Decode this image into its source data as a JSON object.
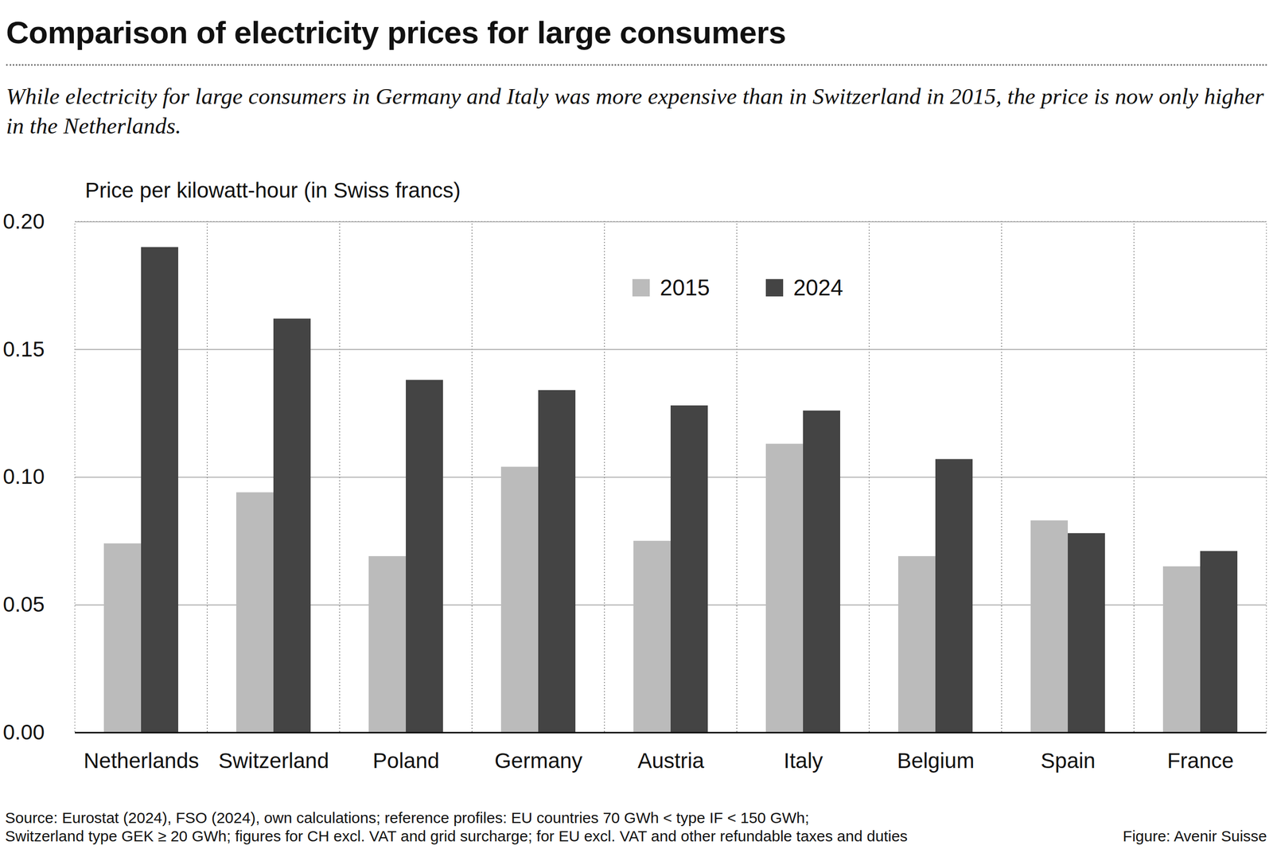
{
  "chart_data": {
    "type": "bar",
    "title": "Comparison of electricity prices for large consumers",
    "subtitle": "While electricity for large consumers in Germany and Italy was more expensive than in Switzerland in 2015, the price is now only higher in the Netherlands.",
    "y_label": "Price per kilowatt-hour (in Swiss francs)",
    "categories": [
      "Netherlands",
      "Switzerland",
      "Poland",
      "Germany",
      "Austria",
      "Italy",
      "Belgium",
      "Spain",
      "France"
    ],
    "series": [
      {
        "name": "2015",
        "color": "#bbbbbb",
        "values": [
          0.074,
          0.094,
          0.069,
          0.104,
          0.075,
          0.113,
          0.069,
          0.083,
          0.065
        ]
      },
      {
        "name": "2024",
        "color": "#444444",
        "values": [
          0.19,
          0.162,
          0.138,
          0.134,
          0.128,
          0.126,
          0.107,
          0.078,
          0.071
        ]
      }
    ],
    "ylim": [
      0,
      0.2
    ],
    "yticks": [
      {
        "value": 0,
        "label": "0.00"
      },
      0.05,
      {
        "value": 0.1,
        "label": "0.10"
      },
      0.15,
      {
        "value": 0.2,
        "label": "0.20"
      }
    ],
    "grid": true,
    "legend": "top",
    "source": [
      "Source: Eurostat (2024), FSO (2024), own calculations; reference profiles: EU countries 70 GWh < type IF < 150 GWh;",
      "Switzerland type GEK ≥ 20 GWh; figures for CH excl. VAT and grid surcharge; for EU excl. VAT and other refundable taxes and duties"
    ],
    "credit": "Figure: Avenir Suisse"
  }
}
